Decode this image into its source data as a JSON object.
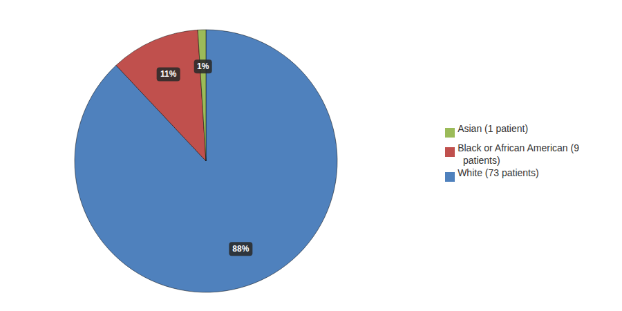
{
  "chart_data": {
    "type": "pie",
    "categories": [
      "White (73 patients)",
      "Black or African American (9\n  patients)",
      "Asian (1 patient)"
    ],
    "values": [
      88,
      11,
      1
    ],
    "value_labels": [
      "88%",
      "11%",
      "1%"
    ],
    "colors": [
      "#4f81bd",
      "#c0504d",
      "#9bbb59"
    ],
    "data_labels": true,
    "legend": "right"
  }
}
